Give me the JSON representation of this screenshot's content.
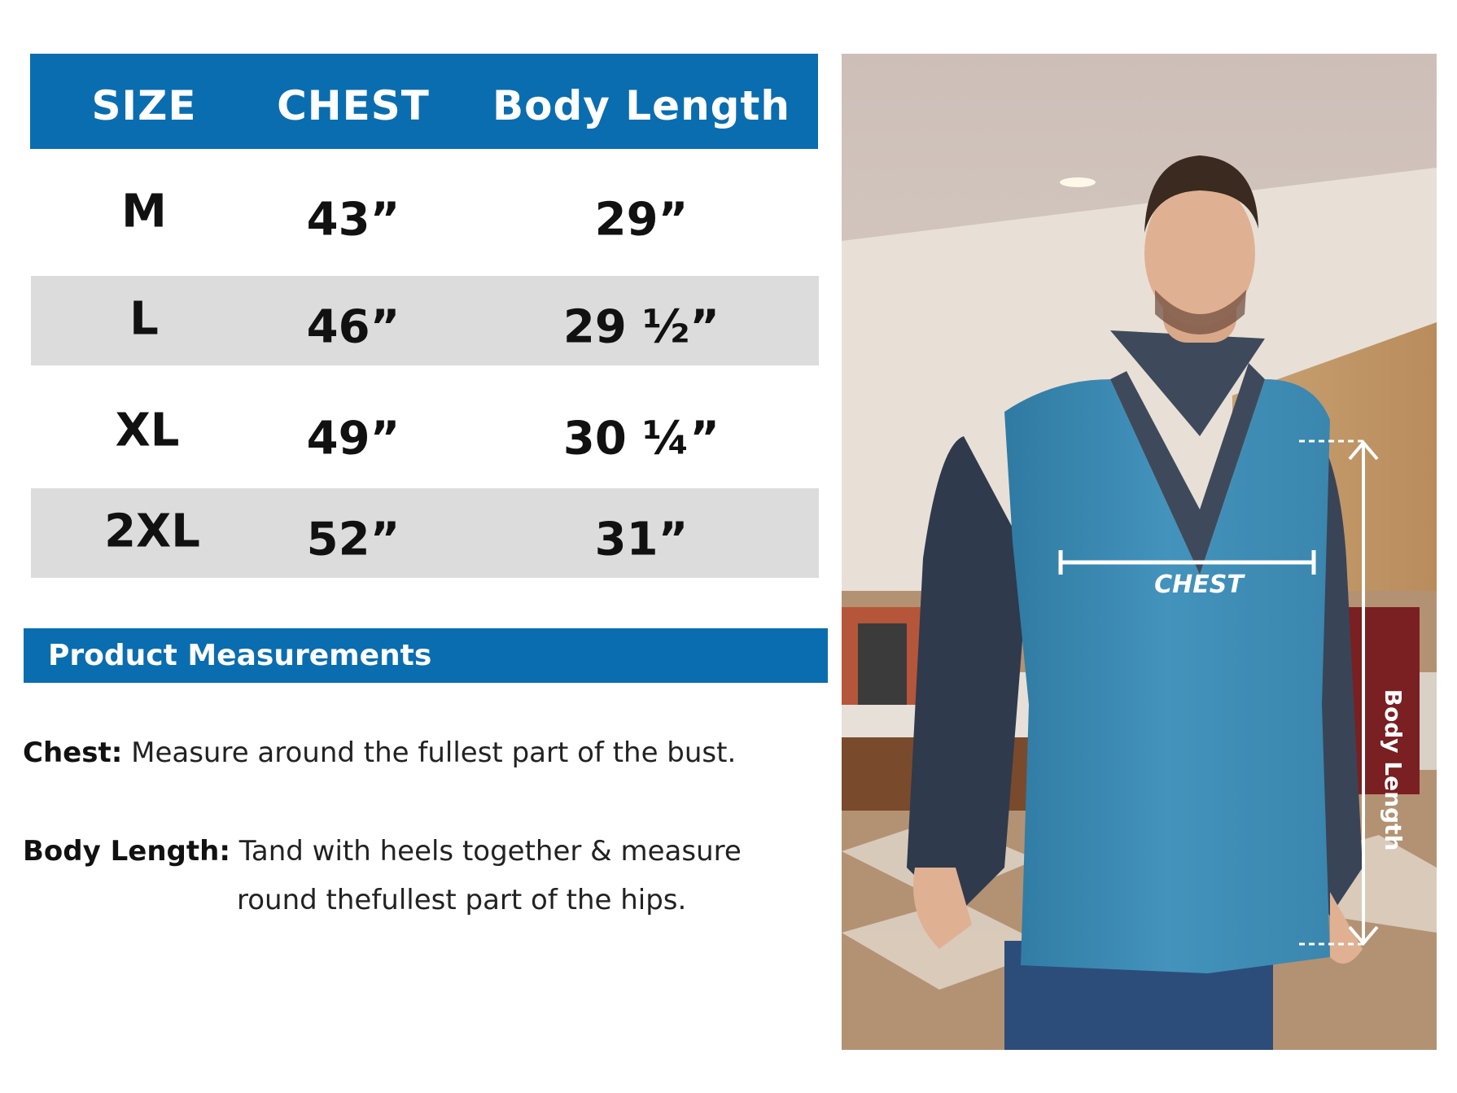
{
  "table": {
    "headers": [
      "SIZE",
      "CHEST",
      "Body Length"
    ],
    "rows": [
      {
        "size": "M",
        "chest": "43”",
        "body_length": "29”"
      },
      {
        "size": "L",
        "chest": "46”",
        "body_length": "29 ½”"
      },
      {
        "size": "XL",
        "chest": "49”",
        "body_length": "30 ¼”"
      },
      {
        "size": "2XL",
        "chest": "52”",
        "body_length": "31”"
      }
    ]
  },
  "measurements": {
    "title": "Product Measurements",
    "chest_label": "Chest:",
    "chest_text": "Measure around the fullest part of  the bust.",
    "body_length_label": "Body Length:",
    "body_length_text_1": "Tand with heels together & measure",
    "body_length_text_2": "round thefullest part of the hips."
  },
  "photo": {
    "chest_annotation": "CHEST",
    "body_length_annotation": "Body Length"
  },
  "colors": {
    "accent": "#0a6db0",
    "row_shade": "#dcdcdc",
    "vest": "#3f8fb8"
  }
}
